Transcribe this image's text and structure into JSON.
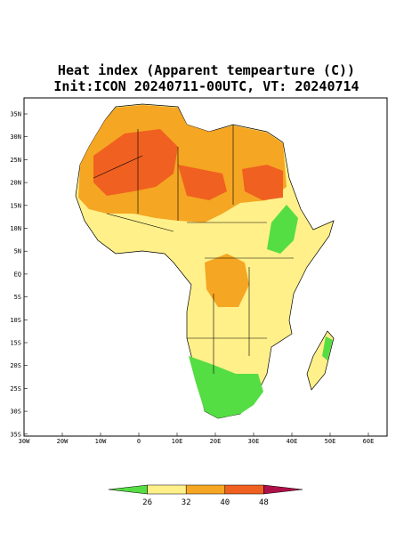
{
  "header": {
    "title": "Heat index (Apparent tempearture (C))",
    "subtitle": "Init:ICON 20240711-00UTC, VT: 20240714"
  },
  "map": {
    "lat_labels": [
      "35N",
      "30N",
      "25N",
      "20N",
      "15N",
      "10N",
      "5N",
      "EQ",
      "5S",
      "10S",
      "15S",
      "20S",
      "25S",
      "30S",
      "35S"
    ],
    "lon_labels": [
      "30W",
      "20W",
      "10W",
      "0",
      "10E",
      "20E",
      "30E",
      "40E",
      "50E",
      "60E"
    ]
  },
  "colorbar": {
    "levels": [
      26,
      32,
      40,
      48
    ],
    "colors": [
      "#55dd44",
      "#fff08a",
      "#f5a623",
      "#f06020",
      "#b0104a"
    ]
  }
}
